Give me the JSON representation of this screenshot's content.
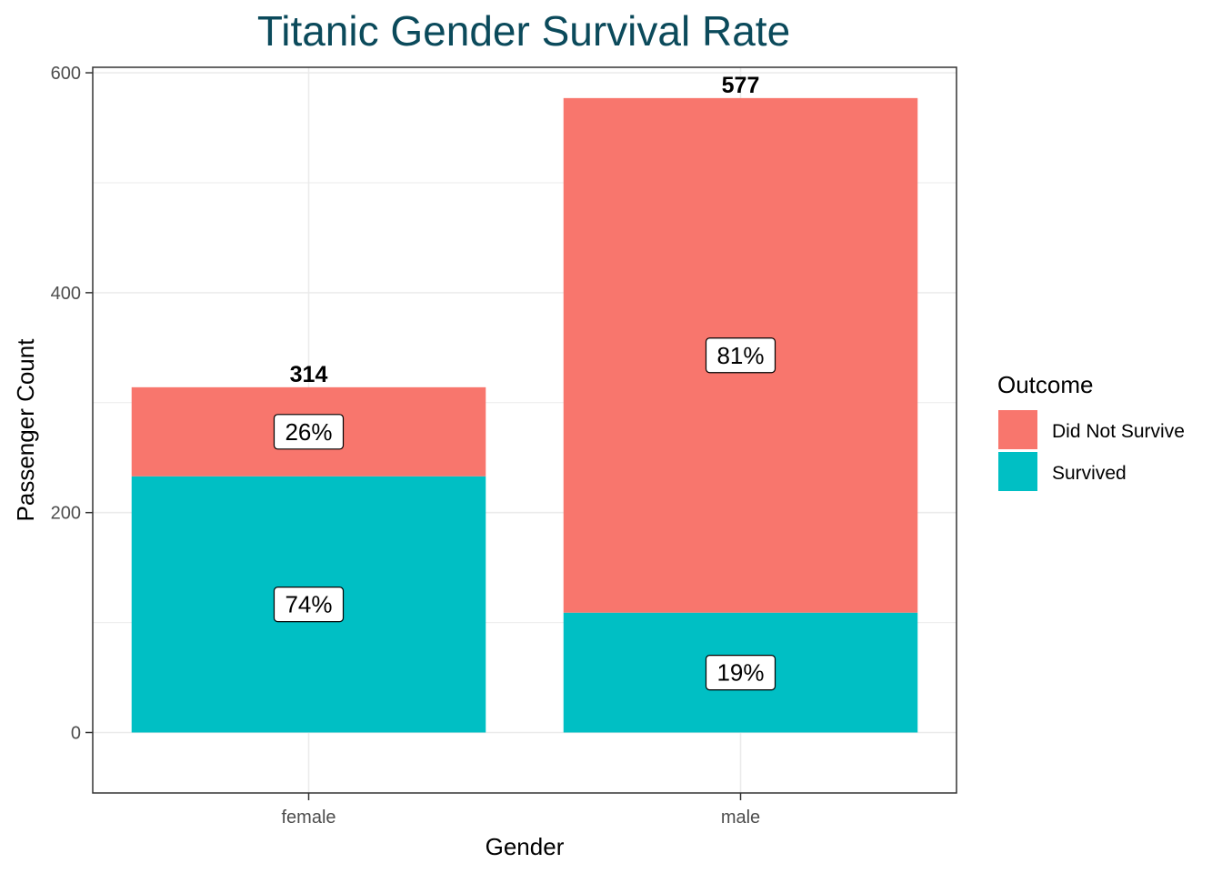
{
  "chart_data": {
    "type": "bar",
    "stacked": true,
    "title": "Titanic Gender Survival Rate",
    "xlabel": "Gender",
    "ylabel": "Passenger Count",
    "categories": [
      "female",
      "male"
    ],
    "ylim": [
      -55,
      605
    ],
    "yticks": [
      0,
      200,
      400,
      600
    ],
    "ytick_labels": [
      "0",
      "200",
      "400",
      "600"
    ],
    "grid": true,
    "legend": {
      "title": "Outcome",
      "position": "right"
    },
    "series": [
      {
        "name": "Survived",
        "color": "#00BFC4",
        "values": [
          233,
          109
        ],
        "labels": [
          "74%",
          "19%"
        ]
      },
      {
        "name": "Did Not Survive",
        "color": "#F8766D",
        "values": [
          81,
          468
        ],
        "labels": [
          "26%",
          "81%"
        ]
      }
    ],
    "legend_order": [
      "Did Not Survive",
      "Survived"
    ],
    "totals": [
      314,
      577
    ],
    "total_labels": [
      "314",
      "577"
    ]
  }
}
